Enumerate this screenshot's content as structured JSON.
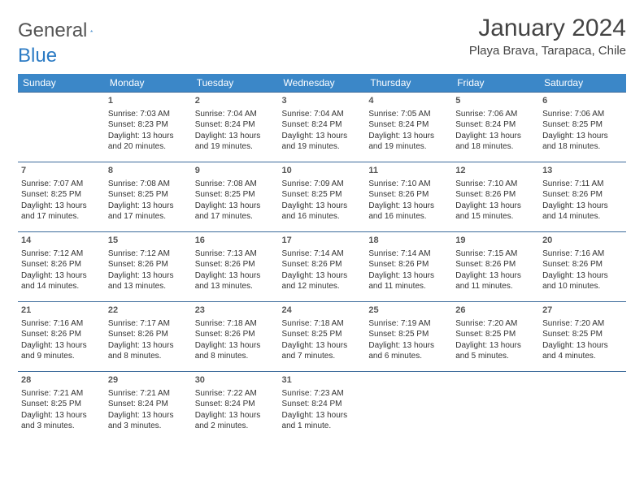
{
  "brand": {
    "word1": "General",
    "word2": "Blue"
  },
  "title": "January 2024",
  "location": "Playa Brava, Tarapaca, Chile",
  "header_bg": "#3b87c8",
  "header_fg": "#ffffff",
  "row_border": "#3b6a9a",
  "logo_color": "#2c7bc4",
  "weekdays": [
    "Sunday",
    "Monday",
    "Tuesday",
    "Wednesday",
    "Thursday",
    "Friday",
    "Saturday"
  ],
  "weeks": [
    [
      null,
      {
        "n": "1",
        "sr": "7:03 AM",
        "ss": "8:23 PM",
        "dl": "13 hours and 20 minutes."
      },
      {
        "n": "2",
        "sr": "7:04 AM",
        "ss": "8:24 PM",
        "dl": "13 hours and 19 minutes."
      },
      {
        "n": "3",
        "sr": "7:04 AM",
        "ss": "8:24 PM",
        "dl": "13 hours and 19 minutes."
      },
      {
        "n": "4",
        "sr": "7:05 AM",
        "ss": "8:24 PM",
        "dl": "13 hours and 19 minutes."
      },
      {
        "n": "5",
        "sr": "7:06 AM",
        "ss": "8:24 PM",
        "dl": "13 hours and 18 minutes."
      },
      {
        "n": "6",
        "sr": "7:06 AM",
        "ss": "8:25 PM",
        "dl": "13 hours and 18 minutes."
      }
    ],
    [
      {
        "n": "7",
        "sr": "7:07 AM",
        "ss": "8:25 PM",
        "dl": "13 hours and 17 minutes."
      },
      {
        "n": "8",
        "sr": "7:08 AM",
        "ss": "8:25 PM",
        "dl": "13 hours and 17 minutes."
      },
      {
        "n": "9",
        "sr": "7:08 AM",
        "ss": "8:25 PM",
        "dl": "13 hours and 17 minutes."
      },
      {
        "n": "10",
        "sr": "7:09 AM",
        "ss": "8:25 PM",
        "dl": "13 hours and 16 minutes."
      },
      {
        "n": "11",
        "sr": "7:10 AM",
        "ss": "8:26 PM",
        "dl": "13 hours and 16 minutes."
      },
      {
        "n": "12",
        "sr": "7:10 AM",
        "ss": "8:26 PM",
        "dl": "13 hours and 15 minutes."
      },
      {
        "n": "13",
        "sr": "7:11 AM",
        "ss": "8:26 PM",
        "dl": "13 hours and 14 minutes."
      }
    ],
    [
      {
        "n": "14",
        "sr": "7:12 AM",
        "ss": "8:26 PM",
        "dl": "13 hours and 14 minutes."
      },
      {
        "n": "15",
        "sr": "7:12 AM",
        "ss": "8:26 PM",
        "dl": "13 hours and 13 minutes."
      },
      {
        "n": "16",
        "sr": "7:13 AM",
        "ss": "8:26 PM",
        "dl": "13 hours and 13 minutes."
      },
      {
        "n": "17",
        "sr": "7:14 AM",
        "ss": "8:26 PM",
        "dl": "13 hours and 12 minutes."
      },
      {
        "n": "18",
        "sr": "7:14 AM",
        "ss": "8:26 PM",
        "dl": "13 hours and 11 minutes."
      },
      {
        "n": "19",
        "sr": "7:15 AM",
        "ss": "8:26 PM",
        "dl": "13 hours and 11 minutes."
      },
      {
        "n": "20",
        "sr": "7:16 AM",
        "ss": "8:26 PM",
        "dl": "13 hours and 10 minutes."
      }
    ],
    [
      {
        "n": "21",
        "sr": "7:16 AM",
        "ss": "8:26 PM",
        "dl": "13 hours and 9 minutes."
      },
      {
        "n": "22",
        "sr": "7:17 AM",
        "ss": "8:26 PM",
        "dl": "13 hours and 8 minutes."
      },
      {
        "n": "23",
        "sr": "7:18 AM",
        "ss": "8:26 PM",
        "dl": "13 hours and 8 minutes."
      },
      {
        "n": "24",
        "sr": "7:18 AM",
        "ss": "8:25 PM",
        "dl": "13 hours and 7 minutes."
      },
      {
        "n": "25",
        "sr": "7:19 AM",
        "ss": "8:25 PM",
        "dl": "13 hours and 6 minutes."
      },
      {
        "n": "26",
        "sr": "7:20 AM",
        "ss": "8:25 PM",
        "dl": "13 hours and 5 minutes."
      },
      {
        "n": "27",
        "sr": "7:20 AM",
        "ss": "8:25 PM",
        "dl": "13 hours and 4 minutes."
      }
    ],
    [
      {
        "n": "28",
        "sr": "7:21 AM",
        "ss": "8:25 PM",
        "dl": "13 hours and 3 minutes."
      },
      {
        "n": "29",
        "sr": "7:21 AM",
        "ss": "8:24 PM",
        "dl": "13 hours and 3 minutes."
      },
      {
        "n": "30",
        "sr": "7:22 AM",
        "ss": "8:24 PM",
        "dl": "13 hours and 2 minutes."
      },
      {
        "n": "31",
        "sr": "7:23 AM",
        "ss": "8:24 PM",
        "dl": "13 hours and 1 minute."
      },
      null,
      null,
      null
    ]
  ],
  "labels": {
    "sunrise": "Sunrise:",
    "sunset": "Sunset:",
    "daylight": "Daylight:"
  }
}
